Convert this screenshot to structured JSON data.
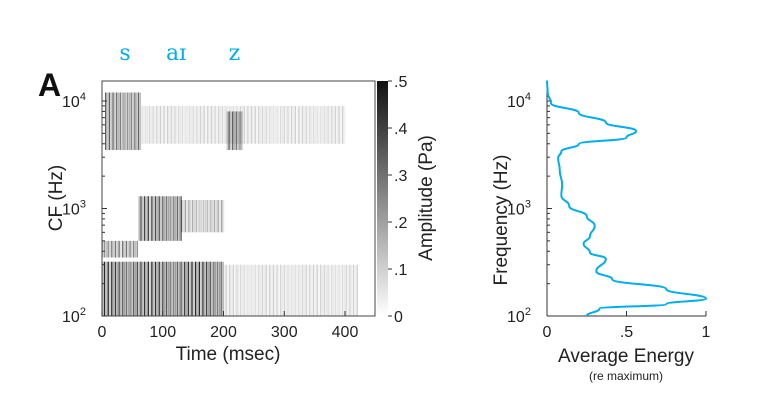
{
  "panel_label": "A",
  "phonemes": [
    {
      "label": "s",
      "time_ms": 38
    },
    {
      "label": "aɪ",
      "time_ms": 122
    },
    {
      "label": "z",
      "time_ms": 218
    }
  ],
  "chart_data": [
    {
      "type": "heatmap",
      "title": "",
      "xlabel": "Time (msec)",
      "ylabel": "CF (Hz)",
      "xlim": [
        0,
        450
      ],
      "ylim_log10": [
        2,
        4.19
      ],
      "x_ticks": [
        "0",
        "100",
        "200",
        "300",
        "400"
      ],
      "x_tick_values": [
        0,
        100,
        200,
        300,
        400
      ],
      "y_ticks": [
        {
          "base": "10",
          "exp": "2",
          "value": 100
        },
        {
          "base": "10",
          "exp": "3",
          "value": 1000
        },
        {
          "base": "10",
          "exp": "4",
          "value": 10000
        }
      ],
      "colorbar": {
        "label": "Amplitude (Pa)",
        "range": [
          0,
          0.5
        ],
        "ticks": [
          "0",
          ".1",
          ".2",
          ".3",
          ".4",
          ".5"
        ],
        "tick_values": [
          0,
          0.1,
          0.2,
          0.3,
          0.4,
          0.5
        ]
      },
      "regions": [
        {
          "t": [
            5,
            65
          ],
          "f": [
            3500,
            12000
          ],
          "amp": 0.35
        },
        {
          "t": [
            205,
            232
          ],
          "f": [
            3500,
            8000
          ],
          "amp": 0.35
        },
        {
          "t": [
            65,
            400
          ],
          "f": [
            4000,
            9000
          ],
          "amp": 0.1
        },
        {
          "t": [
            60,
            130
          ],
          "f": [
            500,
            1300
          ],
          "amp": 0.4
        },
        {
          "t": [
            130,
            200
          ],
          "f": [
            600,
            1200
          ],
          "amp": 0.2
        },
        {
          "t": [
            0,
            60
          ],
          "f": [
            350,
            500
          ],
          "amp": 0.3
        },
        {
          "t": [
            0,
            200
          ],
          "f": [
            100,
            320
          ],
          "amp": 0.45
        },
        {
          "t": [
            200,
            420
          ],
          "f": [
            100,
            300
          ],
          "amp": 0.1
        }
      ]
    },
    {
      "type": "line",
      "title": "",
      "xlabel": "Average Energy",
      "xlabel_sub": "(re maximum)",
      "ylabel": "Frequency (Hz)",
      "xlim": [
        0,
        1
      ],
      "ylim_log10": [
        2,
        4.19
      ],
      "x_ticks": [
        "0",
        ".5",
        "1"
      ],
      "x_tick_values": [
        0,
        0.5,
        1
      ],
      "y_ticks": [
        {
          "base": "10",
          "exp": "2",
          "value": 100
        },
        {
          "base": "10",
          "exp": "3",
          "value": 1000
        },
        {
          "base": "10",
          "exp": "4",
          "value": 10000
        }
      ],
      "series": [
        {
          "name": "Average Energy",
          "color": "#00AEEF",
          "points": [
            {
              "freq_hz": 15500,
              "energy": 0.0
            },
            {
              "freq_hz": 12000,
              "energy": 0.004
            },
            {
              "freq_hz": 9550,
              "energy": 0.025
            },
            {
              "freq_hz": 7760,
              "energy": 0.2
            },
            {
              "freq_hz": 6310,
              "energy": 0.37
            },
            {
              "freq_hz": 5250,
              "energy": 0.56
            },
            {
              "freq_hz": 4570,
              "energy": 0.5
            },
            {
              "freq_hz": 3980,
              "energy": 0.2
            },
            {
              "freq_hz": 3390,
              "energy": 0.09
            },
            {
              "freq_hz": 2950,
              "energy": 0.07
            },
            {
              "freq_hz": 2290,
              "energy": 0.08
            },
            {
              "freq_hz": 1660,
              "energy": 0.095
            },
            {
              "freq_hz": 1320,
              "energy": 0.09
            },
            {
              "freq_hz": 1050,
              "energy": 0.14
            },
            {
              "freq_hz": 850,
              "energy": 0.25
            },
            {
              "freq_hz": 690,
              "energy": 0.3
            },
            {
              "freq_hz": 550,
              "energy": 0.27
            },
            {
              "freq_hz": 470,
              "energy": 0.23
            },
            {
              "freq_hz": 390,
              "energy": 0.27
            },
            {
              "freq_hz": 340,
              "energy": 0.37
            },
            {
              "freq_hz": 260,
              "energy": 0.31
            },
            {
              "freq_hz": 220,
              "energy": 0.41
            },
            {
              "freq_hz": 178,
              "energy": 0.75
            },
            {
              "freq_hz": 145,
              "energy": 1.0
            },
            {
              "freq_hz": 129,
              "energy": 0.75
            },
            {
              "freq_hz": 117,
              "energy": 0.33
            },
            {
              "freq_hz": 100,
              "energy": 0.25
            }
          ]
        }
      ]
    }
  ]
}
